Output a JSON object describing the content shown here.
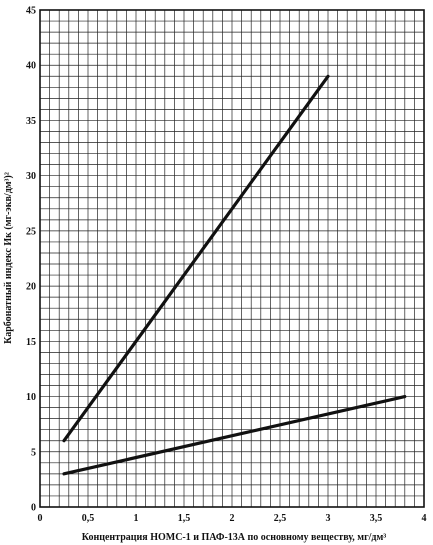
{
  "chart_data": {
    "type": "line",
    "title": "",
    "xlabel": "Концентрация НОМС-1 и ПАФ-13А по основному веществу, мг/дм³",
    "ylabel": "Карбонатный индекс Ик (мг-экв/дм³)²",
    "xlim": [
      0,
      4
    ],
    "ylim": [
      0,
      45
    ],
    "x_ticks": [
      "0",
      "0,5",
      "1",
      "1,5",
      "2",
      "2,5",
      "3",
      "3,5",
      "4"
    ],
    "y_ticks": [
      "0",
      "5",
      "10",
      "15",
      "20",
      "25",
      "30",
      "35",
      "40",
      "45"
    ],
    "grid": true,
    "minor_grid": {
      "x_step": 0.1,
      "y_step": 1
    },
    "series": [
      {
        "x": [
          0.25,
          3.0
        ],
        "y": [
          6.0,
          39.0
        ]
      },
      {
        "x": [
          0.25,
          3.8
        ],
        "y": [
          3.0,
          10.0
        ]
      }
    ]
  }
}
